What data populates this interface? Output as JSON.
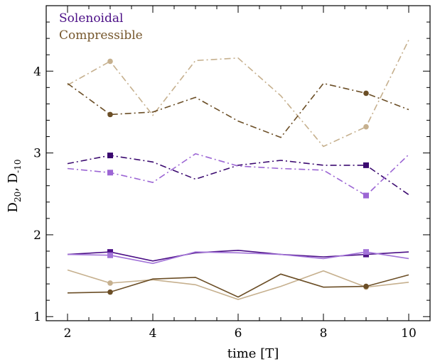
{
  "chart_data": {
    "type": "line",
    "xlabel": "time [T]",
    "ylabel_main": "D",
    "ylabel_sub1": "20",
    "ylabel_sep": ", D",
    "ylabel_sub2": "-10",
    "xlim": [
      1.5,
      10.5
    ],
    "ylim": [
      0.95,
      4.8
    ],
    "xticks": [
      2,
      4,
      6,
      8,
      10
    ],
    "yticks": [
      1,
      2,
      3,
      4
    ],
    "grid": false,
    "legend_position": "top-left",
    "legend": [
      {
        "label": "Solenoidal",
        "color": "#4b0f86"
      },
      {
        "label": "Compressible",
        "color": "#75562b"
      }
    ],
    "x": [
      2,
      3,
      4,
      5,
      6,
      7,
      8,
      9,
      10
    ],
    "series": [
      {
        "group": "Compressible",
        "style": "dashdot",
        "color": "#c6b08e",
        "marker": "circle",
        "marker_x": [
          3,
          9
        ],
        "values": [
          3.83,
          4.12,
          3.46,
          4.13,
          4.16,
          3.7,
          3.08,
          3.32,
          4.38
        ]
      },
      {
        "group": "Compressible",
        "style": "dashdot",
        "color": "#6b4e26",
        "marker": "circle",
        "marker_x": [
          3,
          9
        ],
        "values": [
          3.85,
          3.47,
          3.5,
          3.68,
          3.39,
          3.19,
          3.85,
          3.73,
          3.53
        ]
      },
      {
        "group": "Solenoidal",
        "style": "dashdot",
        "color": "#3b0a70",
        "marker": "square",
        "marker_x": [
          3,
          9
        ],
        "values": [
          2.87,
          2.97,
          2.89,
          2.68,
          2.85,
          2.91,
          2.85,
          2.85,
          2.49
        ]
      },
      {
        "group": "Solenoidal",
        "style": "dashdot",
        "color": "#9c66d4",
        "marker": "square",
        "marker_x": [
          3,
          9
        ],
        "values": [
          2.81,
          2.76,
          2.64,
          2.99,
          2.84,
          2.81,
          2.79,
          2.48,
          2.98
        ]
      },
      {
        "group": "Solenoidal",
        "style": "solid",
        "color": "#4b0f86",
        "marker": "square",
        "marker_x": [
          3,
          9
        ],
        "values": [
          1.76,
          1.79,
          1.68,
          1.78,
          1.81,
          1.76,
          1.73,
          1.76,
          1.79
        ]
      },
      {
        "group": "Solenoidal",
        "style": "solid",
        "color": "#a273d8",
        "marker": "square",
        "marker_x": [
          3,
          9
        ],
        "values": [
          1.76,
          1.75,
          1.65,
          1.79,
          1.78,
          1.76,
          1.71,
          1.79,
          1.71
        ]
      },
      {
        "group": "Compressible",
        "style": "solid",
        "color": "#c6b08e",
        "marker": "circle",
        "marker_x": [
          3,
          9
        ],
        "values": [
          1.57,
          1.41,
          1.45,
          1.39,
          1.21,
          1.37,
          1.56,
          1.36,
          1.42
        ]
      },
      {
        "group": "Compressible",
        "style": "solid",
        "color": "#6b4e26",
        "marker": "circle",
        "marker_x": [
          3,
          9
        ],
        "values": [
          1.29,
          1.3,
          1.46,
          1.48,
          1.24,
          1.52,
          1.36,
          1.37,
          1.51
        ]
      }
    ]
  }
}
